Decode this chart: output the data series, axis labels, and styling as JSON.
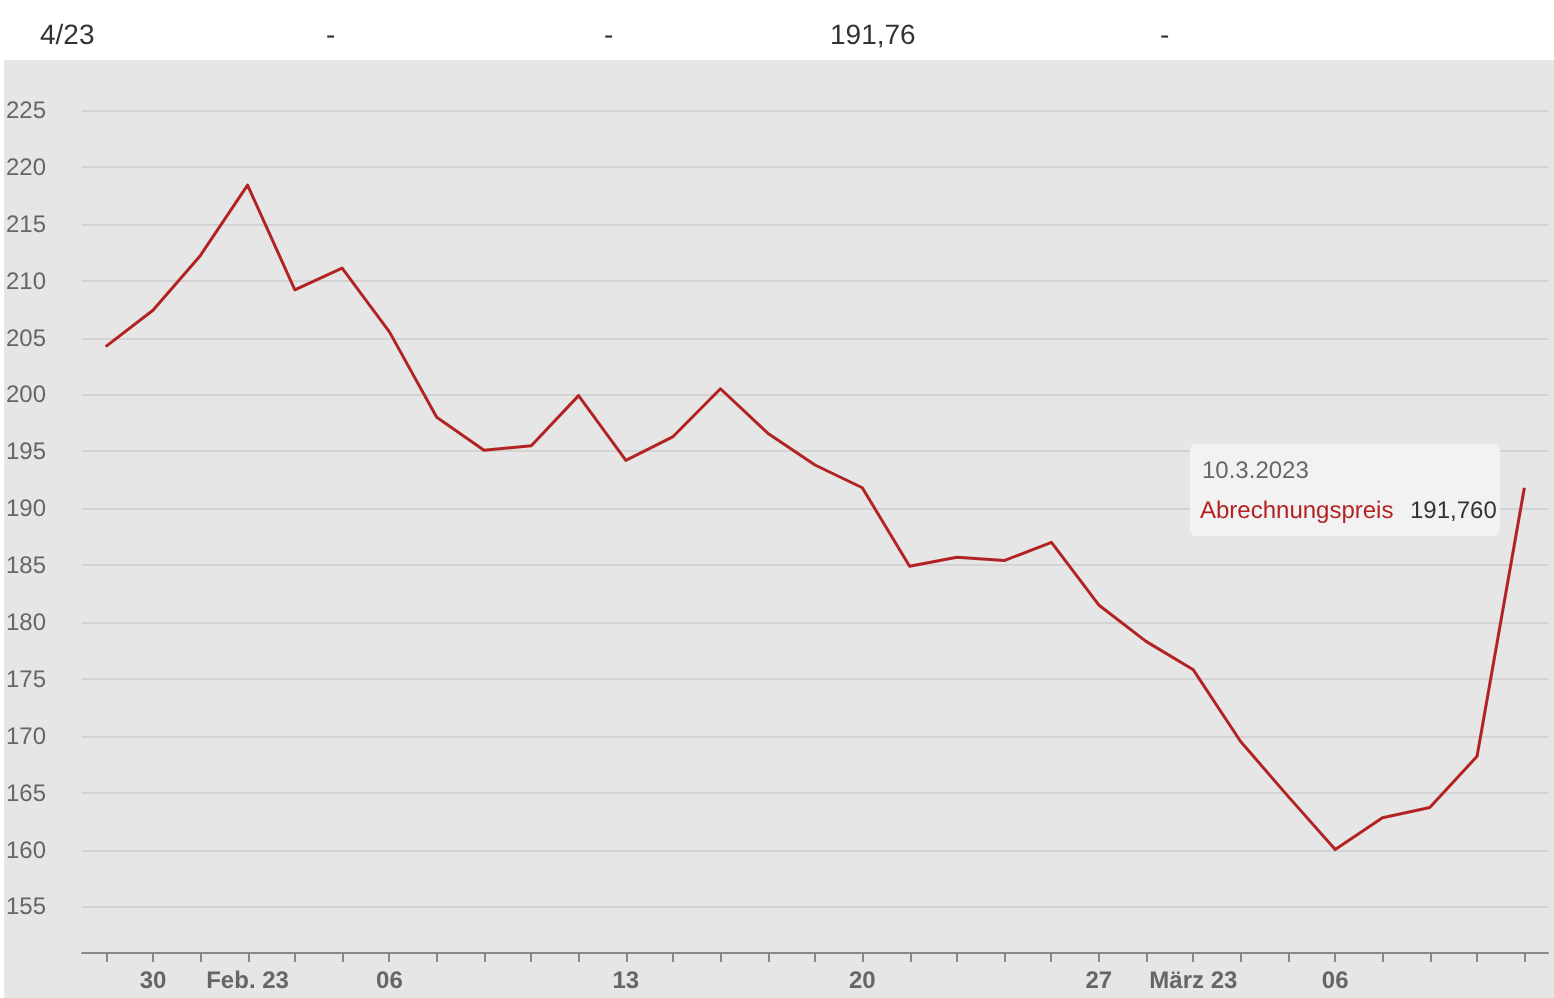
{
  "chart_data": {
    "type": "line",
    "categories": [
      null,
      "30",
      null,
      "Feb. 23",
      null,
      null,
      "06",
      null,
      null,
      null,
      null,
      "13",
      null,
      null,
      null,
      null,
      "20",
      null,
      null,
      null,
      null,
      "27",
      null,
      "März 23",
      null,
      null,
      "06",
      null,
      null,
      null,
      null
    ],
    "series": [
      {
        "name": "Abrechnungspreis",
        "color": "#b22222",
        "values": [
          204.2,
          207.4,
          212.2,
          218.4,
          209.2,
          211.1,
          205.5,
          198.0,
          195.1,
          195.5,
          199.9,
          194.2,
          196.3,
          200.5,
          196.6,
          193.8,
          191.8,
          184.9,
          185.7,
          185.4,
          187.0,
          181.5,
          178.3,
          175.8,
          169.5,
          164.7,
          160.0,
          162.8,
          163.7,
          168.2,
          191.8
        ]
      }
    ],
    "ylim": [
      151,
      225
    ],
    "yticks": [
      155,
      160,
      165,
      170,
      175,
      180,
      185,
      190,
      195,
      200,
      205,
      210,
      215,
      220,
      225
    ],
    "grid": "y",
    "legend": false,
    "marker": "none",
    "line_style": "solid",
    "annotations": [
      "4/23",
      "-",
      "-",
      "191,76",
      "-",
      "10.3.2023",
      "191,760"
    ]
  }
}
